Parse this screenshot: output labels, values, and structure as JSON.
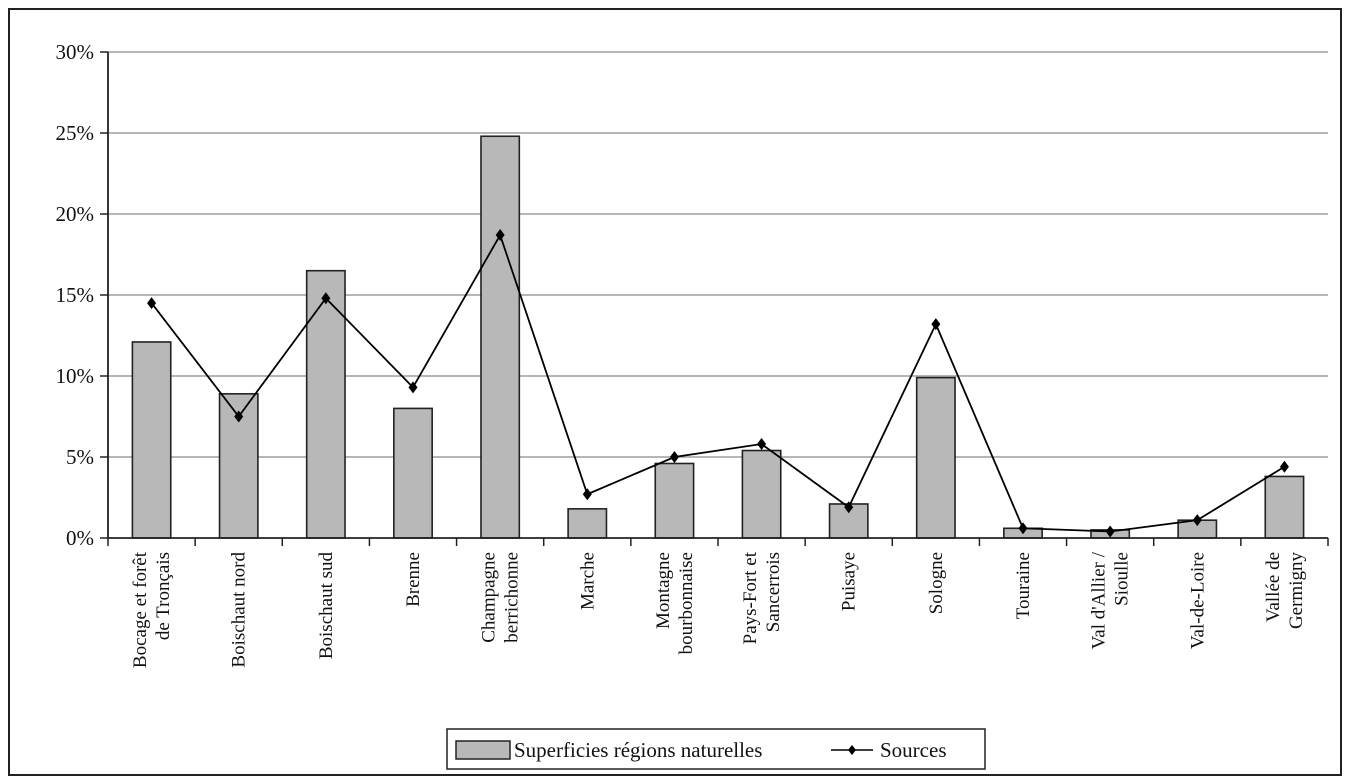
{
  "chart_data": {
    "type": "bar",
    "categories": [
      [
        "Bocage et forêt",
        "de Tronçais"
      ],
      [
        "Boischaut nord"
      ],
      [
        "Boischaut sud"
      ],
      [
        "Brenne"
      ],
      [
        "Champagne",
        "berrichonne"
      ],
      [
        "Marche"
      ],
      [
        "Montagne",
        "bourbonnaise"
      ],
      [
        "Pays-Fort et",
        "Sancerrois"
      ],
      [
        "Puisaye"
      ],
      [
        "Sologne"
      ],
      [
        "Touraine"
      ],
      [
        "Val d'Allier /",
        "Sioulle"
      ],
      [
        "Val-de-Loire"
      ],
      [
        "Vallée de",
        "Germigny"
      ]
    ],
    "series": [
      {
        "name": "Superficies régions naturelles",
        "kind": "bar",
        "color": "#b8b8b8",
        "values": [
          12.1,
          8.9,
          16.5,
          8.0,
          24.8,
          1.8,
          4.6,
          5.4,
          2.1,
          9.9,
          0.6,
          0.5,
          1.1,
          3.8
        ]
      },
      {
        "name": "Sources",
        "kind": "line",
        "color": "#000000",
        "values": [
          14.5,
          7.5,
          14.8,
          9.3,
          18.7,
          2.7,
          5.0,
          5.8,
          1.9,
          13.2,
          0.6,
          0.4,
          1.1,
          4.4
        ]
      }
    ],
    "yticks": [
      "0%",
      "5%",
      "10%",
      "15%",
      "20%",
      "25%",
      "30%"
    ],
    "ylim": [
      0,
      30
    ],
    "grid": true,
    "legend_position": "bottom"
  }
}
